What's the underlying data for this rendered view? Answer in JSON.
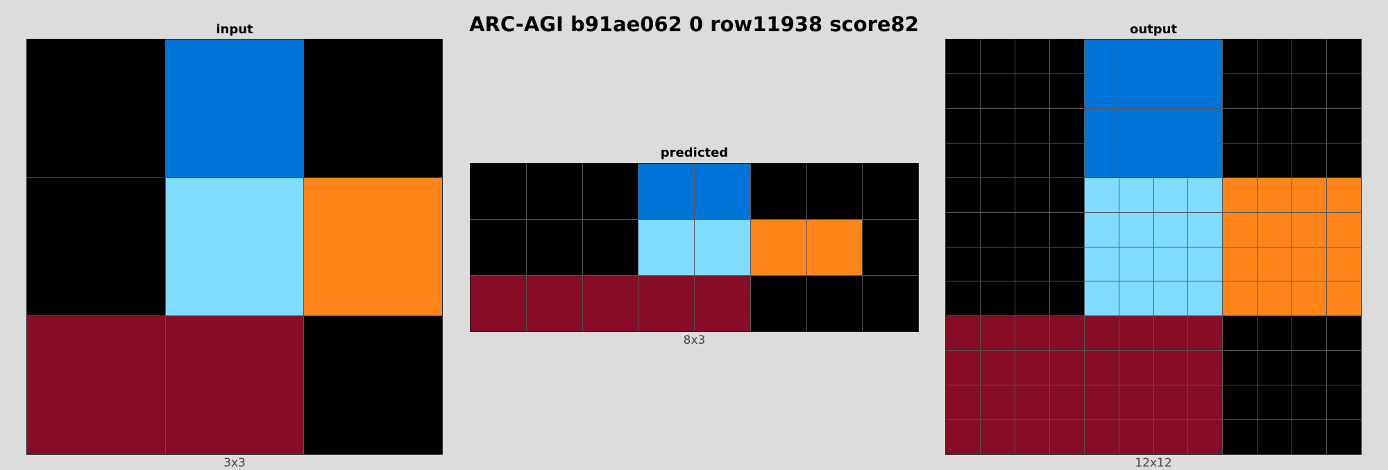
{
  "title": "ARC-AGI b91ae062 0 row11938 score82",
  "palette": {
    "0": "#000000",
    "1": "#0074D9",
    "7": "#FF851B",
    "8": "#7FDBFF",
    "9": "#870C25"
  },
  "panels": {
    "input": {
      "label": "input",
      "size_label": "3x3",
      "grid": [
        [
          0,
          1,
          0
        ],
        [
          0,
          8,
          7
        ],
        [
          9,
          9,
          0
        ]
      ]
    },
    "predicted": {
      "label": "predicted",
      "size_label": "8x3",
      "grid": [
        [
          0,
          0,
          0,
          1,
          1,
          0,
          0,
          0
        ],
        [
          0,
          0,
          0,
          8,
          8,
          7,
          7,
          0
        ],
        [
          9,
          9,
          9,
          9,
          9,
          0,
          0,
          0
        ]
      ]
    },
    "output": {
      "label": "output",
      "size_label": "12x12",
      "grid": [
        [
          0,
          0,
          0,
          0,
          1,
          1,
          1,
          1,
          0,
          0,
          0,
          0
        ],
        [
          0,
          0,
          0,
          0,
          1,
          1,
          1,
          1,
          0,
          0,
          0,
          0
        ],
        [
          0,
          0,
          0,
          0,
          1,
          1,
          1,
          1,
          0,
          0,
          0,
          0
        ],
        [
          0,
          0,
          0,
          0,
          1,
          1,
          1,
          1,
          0,
          0,
          0,
          0
        ],
        [
          0,
          0,
          0,
          0,
          8,
          8,
          8,
          8,
          7,
          7,
          7,
          7
        ],
        [
          0,
          0,
          0,
          0,
          8,
          8,
          8,
          8,
          7,
          7,
          7,
          7
        ],
        [
          0,
          0,
          0,
          0,
          8,
          8,
          8,
          8,
          7,
          7,
          7,
          7
        ],
        [
          0,
          0,
          0,
          0,
          8,
          8,
          8,
          8,
          7,
          7,
          7,
          7
        ],
        [
          9,
          9,
          9,
          9,
          9,
          9,
          9,
          9,
          0,
          0,
          0,
          0
        ],
        [
          9,
          9,
          9,
          9,
          9,
          9,
          9,
          9,
          0,
          0,
          0,
          0
        ],
        [
          9,
          9,
          9,
          9,
          9,
          9,
          9,
          9,
          0,
          0,
          0,
          0
        ],
        [
          9,
          9,
          9,
          9,
          9,
          9,
          9,
          9,
          0,
          0,
          0,
          0
        ]
      ]
    }
  }
}
